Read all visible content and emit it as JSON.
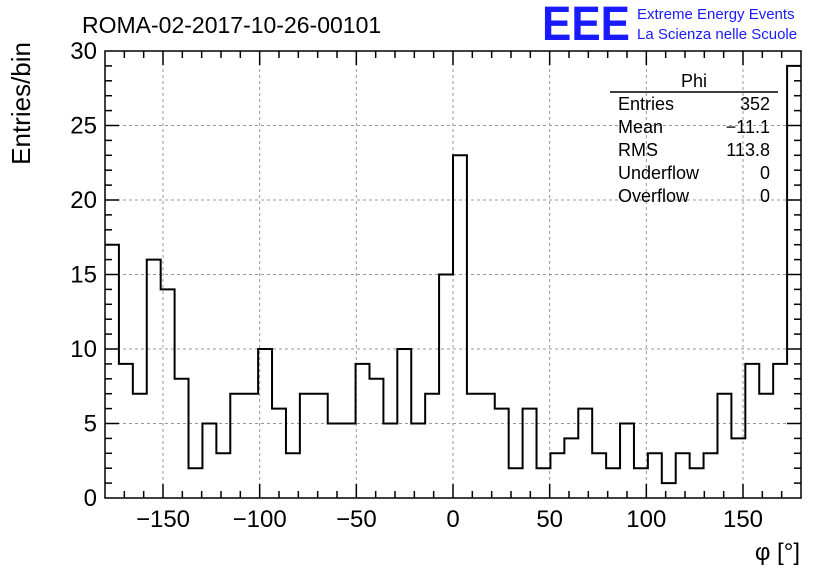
{
  "chart_data": {
    "type": "histogram",
    "title": "ROMA-02-2017-10-26-00101",
    "xlabel": "φ [°]",
    "ylabel": "Entries/bin",
    "xlim": [
      -180,
      180
    ],
    "ylim": [
      0,
      30
    ],
    "bin_width": 7.2,
    "x_ticks": [
      -150,
      -100,
      -50,
      0,
      50,
      100,
      150
    ],
    "x_tick_labels": [
      "−150",
      "−100",
      "−50",
      "0",
      "50",
      "100",
      "150"
    ],
    "y_ticks": [
      0,
      5,
      10,
      15,
      20,
      25,
      30
    ],
    "y_tick_labels": [
      "0",
      "5",
      "10",
      "15",
      "20",
      "25",
      "30"
    ],
    "grid": true,
    "values": [
      17,
      9,
      7,
      16,
      14,
      8,
      2,
      5,
      3,
      7,
      7,
      10,
      6,
      3,
      7,
      7,
      5,
      5,
      9,
      8,
      5,
      10,
      5,
      7,
      15,
      23,
      7,
      7,
      6,
      2,
      6,
      2,
      3,
      4,
      6,
      3,
      2,
      5,
      2,
      3,
      1,
      3,
      2,
      3,
      7,
      4,
      9,
      7,
      9,
      29
    ],
    "stats": {
      "name": "Phi",
      "rows": [
        {
          "label": "Entries",
          "value": "352"
        },
        {
          "label": "Mean",
          "value": "−11.1"
        },
        {
          "label": "RMS",
          "value": "113.8"
        },
        {
          "label": "Underflow",
          "value": "0"
        },
        {
          "label": "Overflow",
          "value": "0"
        }
      ]
    }
  },
  "logo": {
    "mark": "EEE",
    "line1": "Extreme Energy Events",
    "line2": "La Scienza nelle Scuole",
    "color": "#1a1aff"
  }
}
